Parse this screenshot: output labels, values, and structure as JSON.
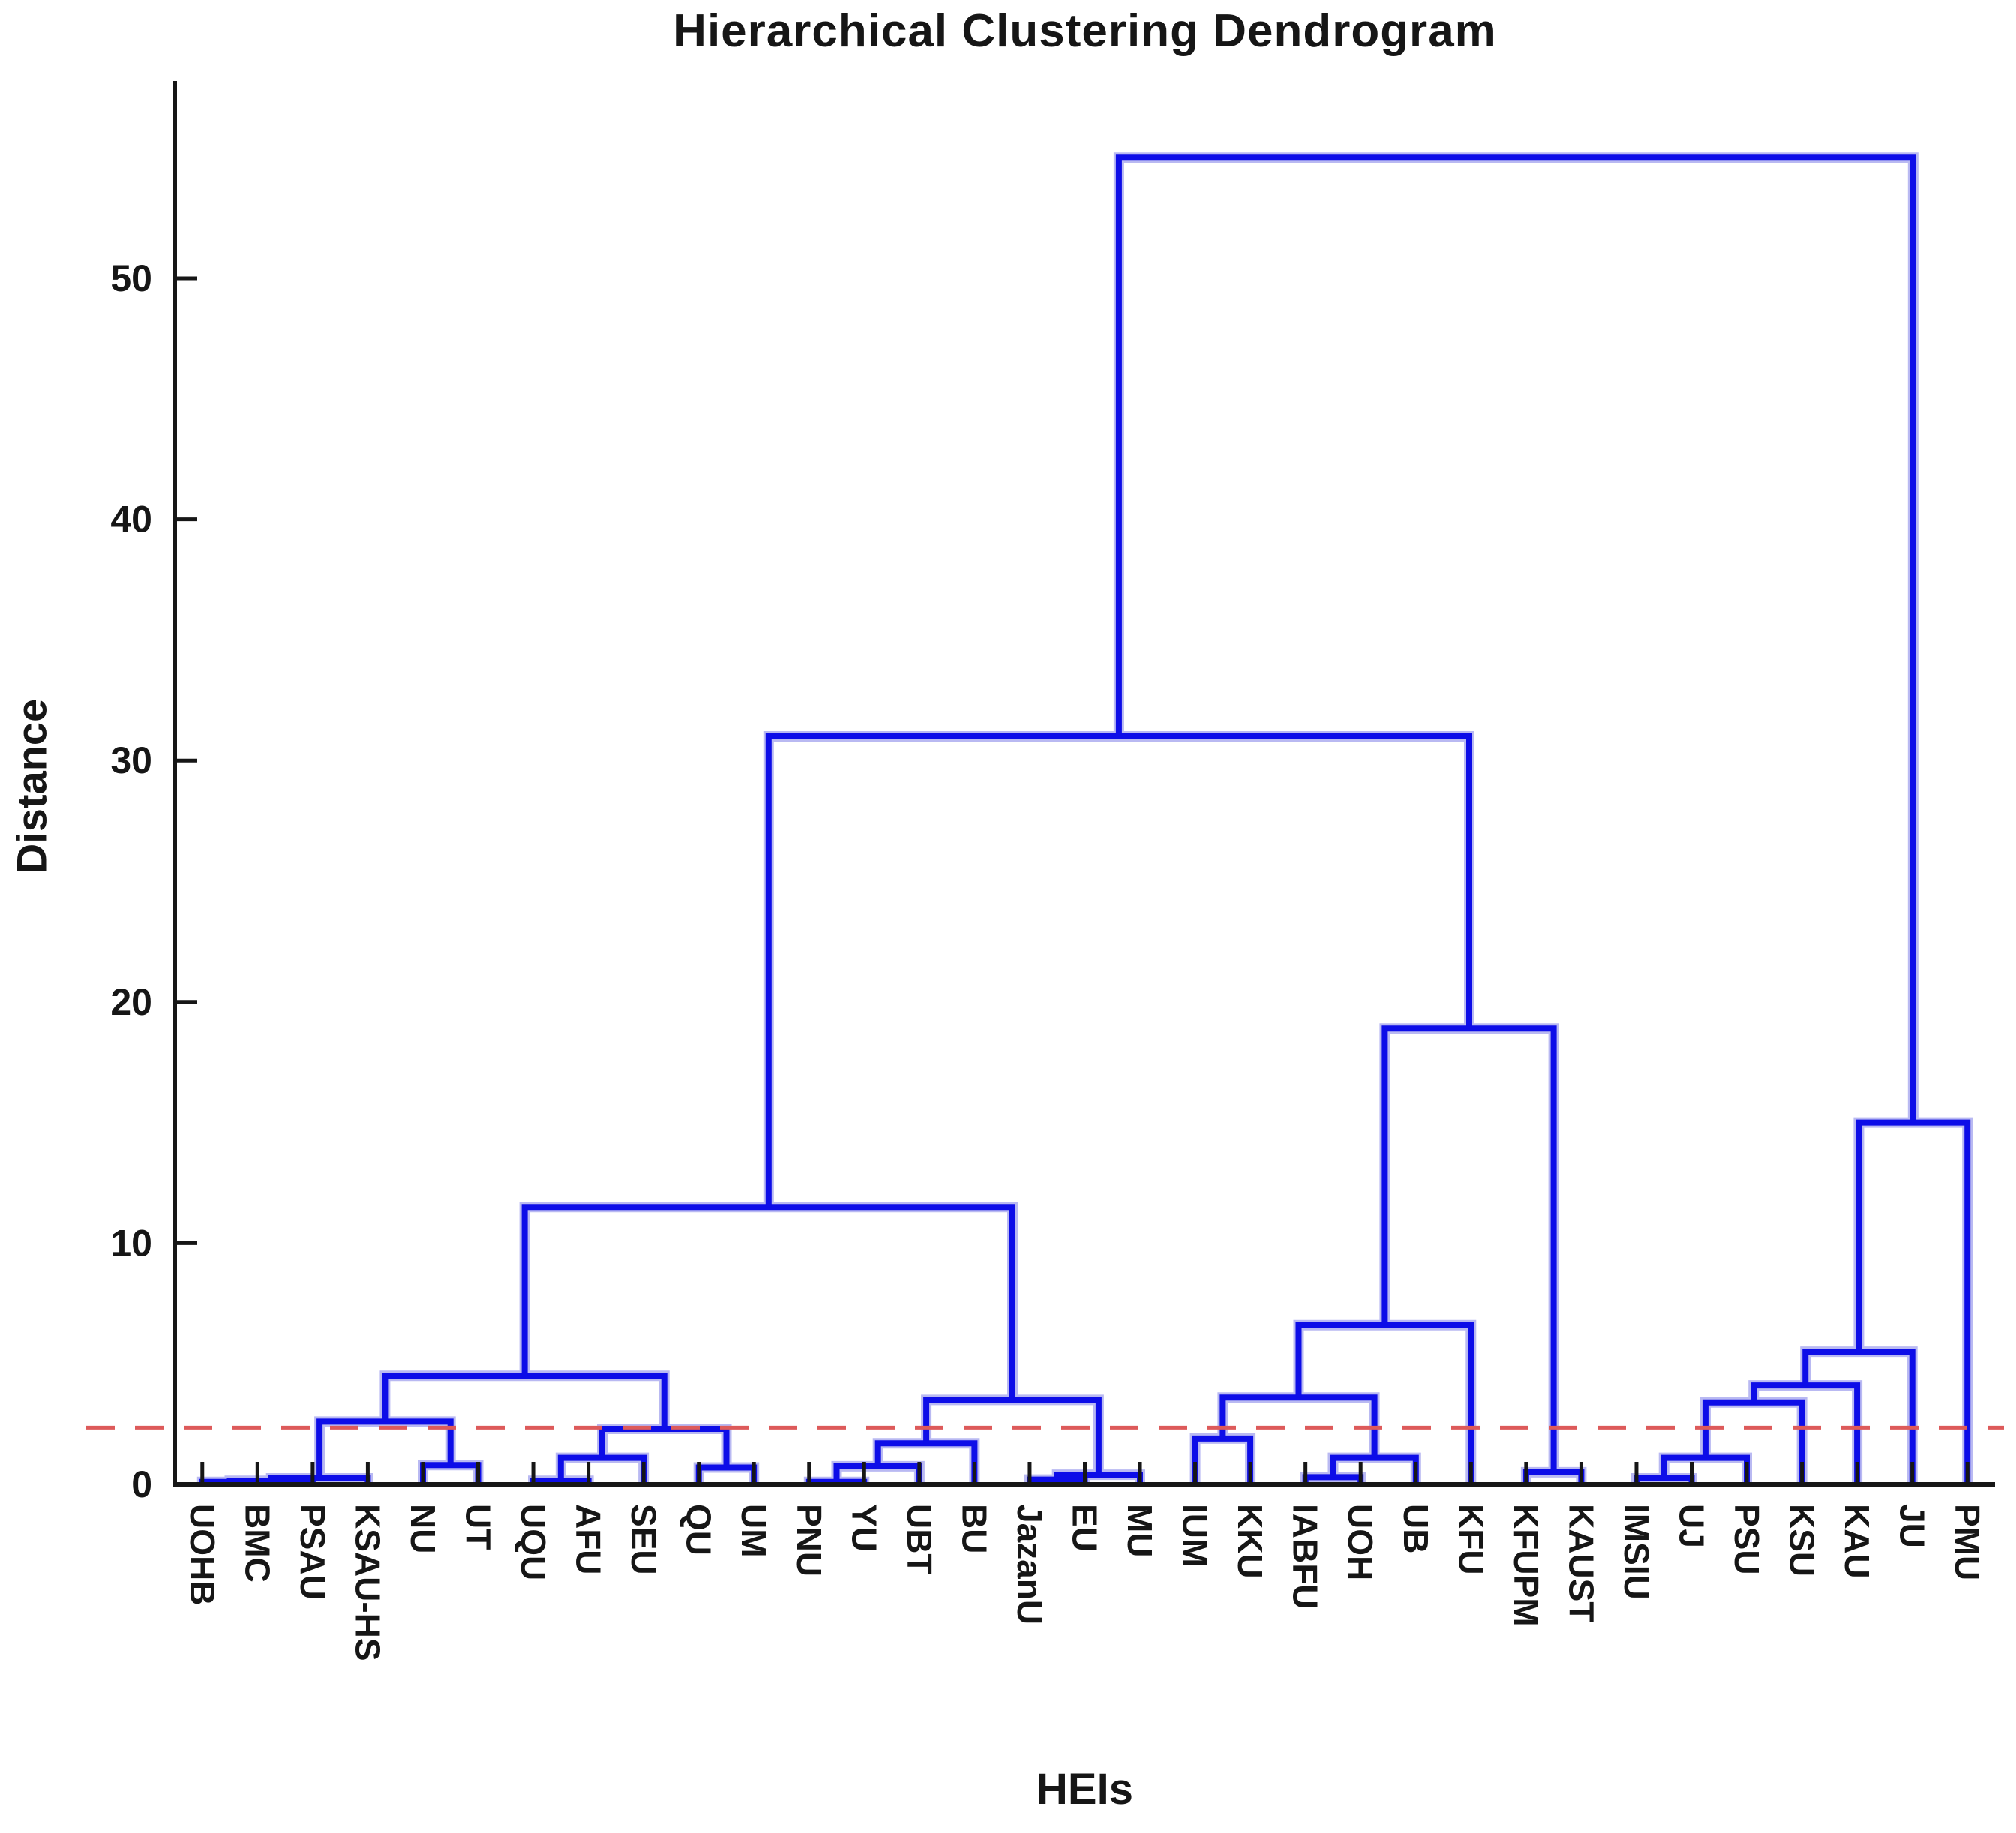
{
  "chart_data": {
    "type": "dendrogram",
    "title": "Hierarchical Clustering Dendrogram",
    "xlabel": "HEIs",
    "ylabel": "Distance",
    "leaves": [
      "UOHB",
      "BMC",
      "PSAU",
      "KSAU-HS",
      "NU",
      "UT",
      "UQU",
      "AFU",
      "SEU",
      "QU",
      "UM",
      "PNU",
      "YU",
      "UBT",
      "BU",
      "JazanU",
      "EU",
      "MU",
      "IUM",
      "KKU",
      "IABFU",
      "UOH",
      "UB",
      "KFU",
      "KFUPM",
      "KAUST",
      "IMSIU",
      "UJ",
      "PSU",
      "KSU",
      "KAU",
      "JU",
      "PMU"
    ],
    "merges": [
      {
        "a": "L0",
        "b": "L1",
        "h": 0.1
      },
      {
        "a": "M0",
        "b": "L2",
        "h": 0.15
      },
      {
        "a": "M1",
        "b": "L3",
        "h": 0.25
      },
      {
        "a": "L4",
        "b": "L5",
        "h": 0.8
      },
      {
        "a": "M2",
        "b": "M3",
        "h": 2.6
      },
      {
        "a": "L6",
        "b": "L7",
        "h": 0.15
      },
      {
        "a": "M5",
        "b": "L8",
        "h": 1.1
      },
      {
        "a": "L9",
        "b": "L10",
        "h": 0.7
      },
      {
        "a": "M6",
        "b": "M7",
        "h": 2.3
      },
      {
        "a": "M4",
        "b": "M8",
        "h": 4.5
      },
      {
        "a": "L11",
        "b": "L12",
        "h": 0.1
      },
      {
        "a": "M10",
        "b": "L13",
        "h": 0.75
      },
      {
        "a": "M11",
        "b": "L14",
        "h": 1.7
      },
      {
        "a": "L15",
        "b": "L16",
        "h": 0.2
      },
      {
        "a": "M13",
        "b": "L17",
        "h": 0.4
      },
      {
        "a": "M12",
        "b": "M14",
        "h": 3.5
      },
      {
        "a": "M9",
        "b": "M15",
        "h": 11.5
      },
      {
        "a": "L18",
        "b": "L19",
        "h": 1.9
      },
      {
        "a": "L20",
        "b": "L21",
        "h": 0.3
      },
      {
        "a": "M18",
        "b": "L22",
        "h": 1.1
      },
      {
        "a": "M17",
        "b": "M19",
        "h": 3.6
      },
      {
        "a": "M20",
        "b": "L23",
        "h": 6.6
      },
      {
        "a": "L24",
        "b": "L25",
        "h": 0.5
      },
      {
        "a": "M21",
        "b": "M22",
        "h": 18.9
      },
      {
        "a": "M16",
        "b": "M23",
        "h": 31.0
      },
      {
        "a": "L26",
        "b": "L27",
        "h": 0.25
      },
      {
        "a": "M25",
        "b": "L28",
        "h": 1.1
      },
      {
        "a": "M26",
        "b": "L29",
        "h": 3.4
      },
      {
        "a": "M27",
        "b": "L30",
        "h": 4.1
      },
      {
        "a": "M28",
        "b": "L31",
        "h": 5.5
      },
      {
        "a": "M29",
        "b": "L32",
        "h": 15.0
      },
      {
        "a": "M24",
        "b": "M30",
        "h": 55.0
      }
    ],
    "cutoff_line": {
      "value": 2.35,
      "style": "dashed",
      "color": "#dd5a5a"
    },
    "yticks": [
      0,
      10,
      20,
      30,
      40,
      50
    ],
    "ylim": [
      0,
      58
    ],
    "grid": false,
    "legend": null,
    "colors": {
      "link": "#0d0de8",
      "link_halo": "#b9b9f2",
      "cutoff": "#dd5a5a",
      "axis": "#161616",
      "text": "#161616",
      "background": "#ffffff"
    }
  }
}
